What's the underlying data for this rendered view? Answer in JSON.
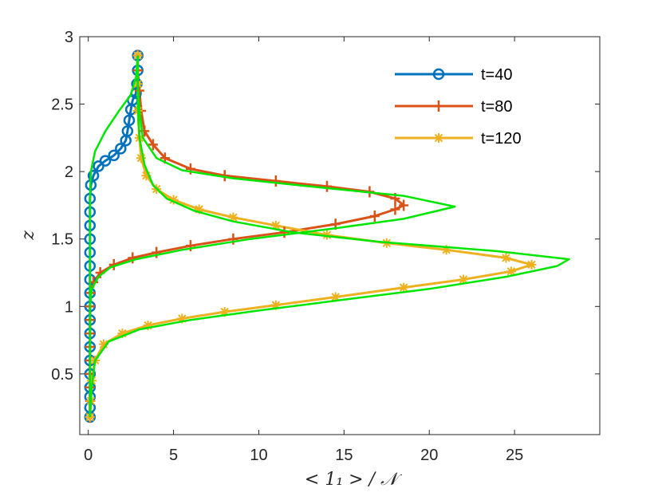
{
  "chart_data": {
    "type": "line",
    "xlabel": "< 1₁ > / 𝒩",
    "ylabel": "z",
    "xlim": [
      -0.5,
      30
    ],
    "ylim": [
      0.05,
      3
    ],
    "xticks": [
      "0",
      "5",
      "10",
      "15",
      "20",
      "25"
    ],
    "yticks": [
      "0.5",
      "1",
      "1.5",
      "2",
      "2.5",
      "3"
    ],
    "xtick_values": [
      0,
      5,
      10,
      15,
      20,
      25
    ],
    "ytick_values": [
      0.5,
      1,
      1.5,
      2,
      2.5,
      3
    ],
    "legend_position": "top-right",
    "series": [
      {
        "name": "t=40",
        "color": "#0072BD",
        "marker": "circle",
        "points": [
          [
            0.1,
            0.18
          ],
          [
            0.1,
            0.25
          ],
          [
            0.1,
            0.33
          ],
          [
            0.1,
            0.4
          ],
          [
            0.1,
            0.5
          ],
          [
            0.1,
            0.6
          ],
          [
            0.1,
            0.7
          ],
          [
            0.1,
            0.8
          ],
          [
            0.1,
            0.9
          ],
          [
            0.1,
            1.0
          ],
          [
            0.1,
            1.1
          ],
          [
            0.1,
            1.2
          ],
          [
            0.1,
            1.3
          ],
          [
            0.1,
            1.4
          ],
          [
            0.1,
            1.5
          ],
          [
            0.1,
            1.6
          ],
          [
            0.1,
            1.7
          ],
          [
            0.1,
            1.8
          ],
          [
            0.15,
            1.9
          ],
          [
            0.3,
            1.97
          ],
          [
            0.6,
            2.04
          ],
          [
            1.0,
            2.08
          ],
          [
            1.5,
            2.12
          ],
          [
            1.9,
            2.17
          ],
          [
            2.2,
            2.23
          ],
          [
            2.3,
            2.3
          ],
          [
            2.4,
            2.38
          ],
          [
            2.5,
            2.46
          ],
          [
            2.6,
            2.53
          ],
          [
            2.8,
            2.58
          ],
          [
            2.85,
            2.65
          ],
          [
            2.9,
            2.75
          ],
          [
            2.9,
            2.86
          ]
        ]
      },
      {
        "name": "t=80",
        "color": "#D95319",
        "marker": "plus",
        "points": [
          [
            0.1,
            0.18
          ],
          [
            0.1,
            0.3
          ],
          [
            0.1,
            0.4
          ],
          [
            0.1,
            0.5
          ],
          [
            0.1,
            0.6
          ],
          [
            0.1,
            0.7
          ],
          [
            0.1,
            0.8
          ],
          [
            0.1,
            0.9
          ],
          [
            0.1,
            1.0
          ],
          [
            0.15,
            1.1
          ],
          [
            0.3,
            1.18
          ],
          [
            0.7,
            1.25
          ],
          [
            1.5,
            1.31
          ],
          [
            2.6,
            1.36
          ],
          [
            4.0,
            1.4
          ],
          [
            6.0,
            1.45
          ],
          [
            8.5,
            1.5
          ],
          [
            11.5,
            1.55
          ],
          [
            14.5,
            1.61
          ],
          [
            16.8,
            1.67
          ],
          [
            18.0,
            1.72
          ],
          [
            18.5,
            1.75
          ],
          [
            18.0,
            1.8
          ],
          [
            16.5,
            1.85
          ],
          [
            14.0,
            1.89
          ],
          [
            11.0,
            1.93
          ],
          [
            8.0,
            1.97
          ],
          [
            6.0,
            2.02
          ],
          [
            4.5,
            2.1
          ],
          [
            3.8,
            2.2
          ],
          [
            3.3,
            2.3
          ],
          [
            3.1,
            2.45
          ],
          [
            3.0,
            2.6
          ],
          [
            2.9,
            2.75
          ],
          [
            2.9,
            2.86
          ]
        ]
      },
      {
        "name": "t=120",
        "color": "#EDB120",
        "marker": "asterisk",
        "points": [
          [
            0.1,
            0.18
          ],
          [
            0.15,
            0.3
          ],
          [
            0.2,
            0.45
          ],
          [
            0.4,
            0.6
          ],
          [
            0.9,
            0.72
          ],
          [
            2.0,
            0.8
          ],
          [
            3.5,
            0.86
          ],
          [
            5.5,
            0.91
          ],
          [
            8.0,
            0.96
          ],
          [
            11.0,
            1.01
          ],
          [
            14.5,
            1.07
          ],
          [
            18.5,
            1.14
          ],
          [
            22.0,
            1.2
          ],
          [
            24.8,
            1.26
          ],
          [
            26.0,
            1.31
          ],
          [
            24.5,
            1.36
          ],
          [
            21.0,
            1.42
          ],
          [
            17.5,
            1.47
          ],
          [
            14.0,
            1.53
          ],
          [
            11.0,
            1.6
          ],
          [
            8.5,
            1.66
          ],
          [
            6.5,
            1.72
          ],
          [
            5.0,
            1.79
          ],
          [
            4.0,
            1.87
          ],
          [
            3.4,
            1.97
          ],
          [
            3.1,
            2.1
          ],
          [
            3.0,
            2.25
          ],
          [
            2.9,
            2.45
          ],
          [
            2.9,
            2.65
          ],
          [
            2.9,
            2.86
          ]
        ]
      },
      {
        "name": "",
        "color": "#00E600",
        "marker": "none",
        "points": [
          [
            0.1,
            0.18
          ],
          [
            0.1,
            0.4
          ],
          [
            0.1,
            0.6
          ],
          [
            0.1,
            0.8
          ],
          [
            0.1,
            1.0
          ],
          [
            0.1,
            1.2
          ],
          [
            0.1,
            1.4
          ],
          [
            0.1,
            1.6
          ],
          [
            0.1,
            1.8
          ],
          [
            0.15,
            2.0
          ],
          [
            0.4,
            2.15
          ],
          [
            1.0,
            2.3
          ],
          [
            1.8,
            2.45
          ],
          [
            2.5,
            2.57
          ],
          [
            2.8,
            2.7
          ],
          [
            2.9,
            2.86
          ]
        ]
      },
      {
        "name": "",
        "color": "#00E600",
        "marker": "none",
        "points": [
          [
            0.1,
            0.18
          ],
          [
            0.1,
            0.5
          ],
          [
            0.1,
            0.8
          ],
          [
            0.1,
            1.0
          ],
          [
            0.2,
            1.13
          ],
          [
            0.6,
            1.22
          ],
          [
            1.3,
            1.29
          ],
          [
            2.8,
            1.35
          ],
          [
            5.5,
            1.42
          ],
          [
            9.5,
            1.5
          ],
          [
            14.5,
            1.58
          ],
          [
            18.5,
            1.65
          ],
          [
            21.5,
            1.74
          ],
          [
            18.5,
            1.82
          ],
          [
            13.0,
            1.89
          ],
          [
            8.5,
            1.95
          ],
          [
            5.5,
            2.01
          ],
          [
            4.0,
            2.1
          ],
          [
            3.2,
            2.25
          ],
          [
            3.0,
            2.45
          ],
          [
            2.9,
            2.65
          ],
          [
            2.9,
            2.86
          ]
        ]
      },
      {
        "name": "",
        "color": "#00E600",
        "marker": "none",
        "points": [
          [
            0.1,
            0.18
          ],
          [
            0.2,
            0.4
          ],
          [
            0.4,
            0.6
          ],
          [
            1.2,
            0.74
          ],
          [
            3.0,
            0.83
          ],
          [
            6.0,
            0.9
          ],
          [
            10.0,
            0.97
          ],
          [
            15.0,
            1.05
          ],
          [
            20.0,
            1.13
          ],
          [
            24.5,
            1.22
          ],
          [
            27.5,
            1.3
          ],
          [
            28.2,
            1.35
          ],
          [
            24.0,
            1.41
          ],
          [
            17.0,
            1.48
          ],
          [
            12.0,
            1.55
          ],
          [
            8.5,
            1.63
          ],
          [
            6.2,
            1.71
          ],
          [
            4.6,
            1.8
          ],
          [
            3.8,
            1.9
          ],
          [
            3.3,
            2.05
          ],
          [
            3.0,
            2.25
          ],
          [
            2.9,
            2.5
          ],
          [
            2.9,
            2.86
          ]
        ]
      }
    ]
  }
}
